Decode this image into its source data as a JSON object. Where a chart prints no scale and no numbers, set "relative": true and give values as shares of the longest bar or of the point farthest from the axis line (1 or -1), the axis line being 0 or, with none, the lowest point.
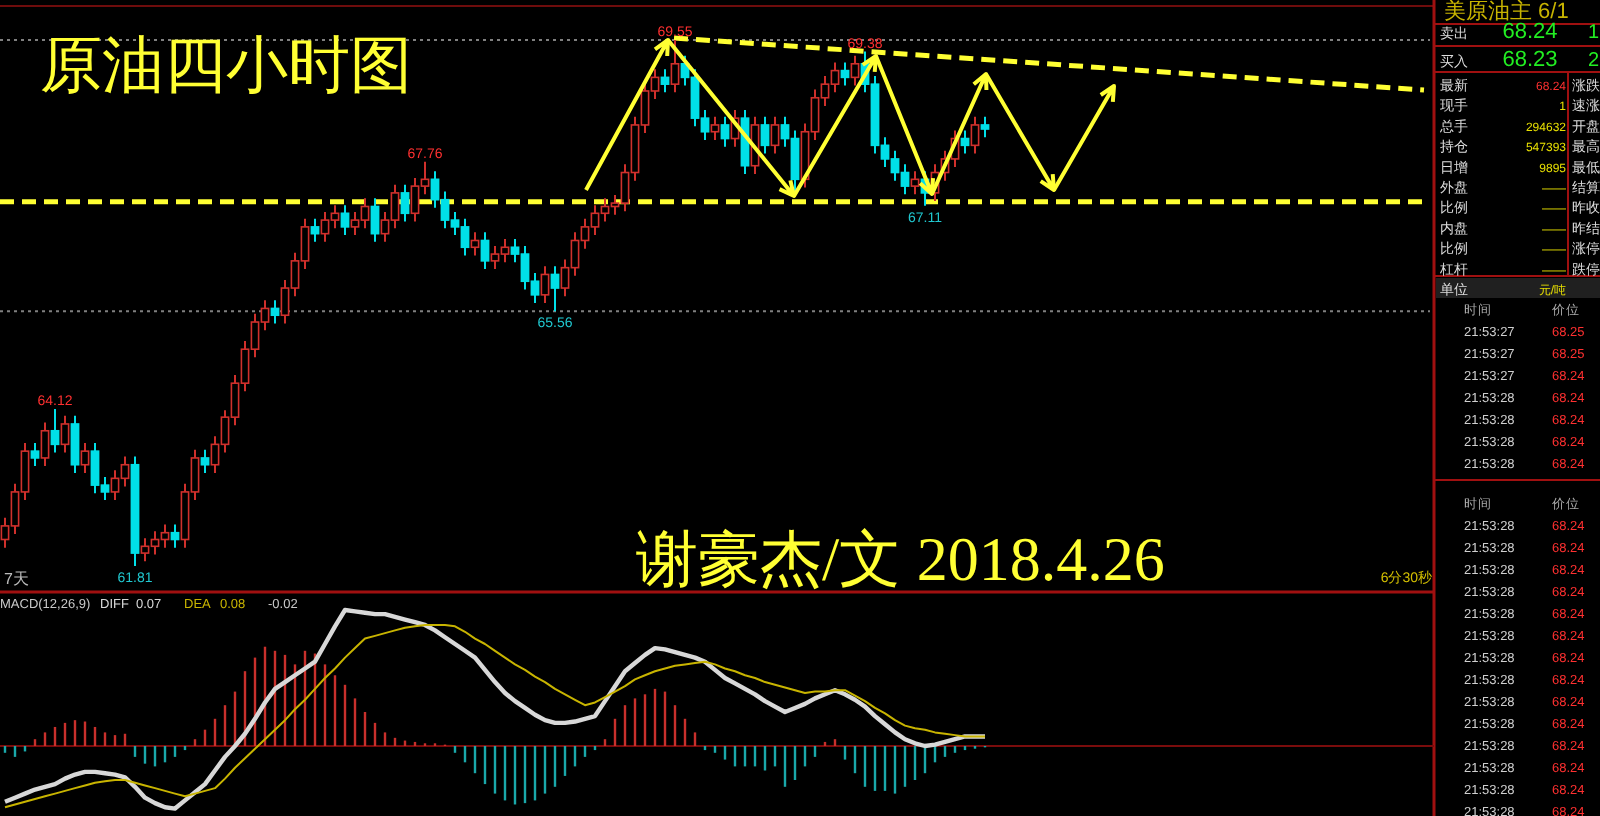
{
  "chart_data": [
    {
      "type": "candlestick",
      "title": "原油四小时图",
      "categories": [
        null,
        null,
        null,
        null,
        null,
        null,
        null,
        null,
        null,
        null,
        null,
        null,
        null,
        null,
        null,
        null,
        null,
        null,
        null,
        null,
        null,
        null,
        null,
        null,
        null,
        null,
        null,
        null,
        null,
        null,
        null,
        null,
        null,
        null,
        null,
        null,
        null,
        null,
        null,
        null,
        null,
        null,
        null,
        null,
        null,
        null,
        null,
        null,
        null,
        null,
        null,
        null,
        null,
        null,
        null,
        null,
        null,
        null,
        null,
        null,
        null,
        null,
        null,
        null,
        null,
        null,
        null,
        null,
        null,
        null,
        null,
        null,
        null,
        null,
        null,
        null,
        null,
        null,
        null,
        null,
        null,
        null,
        null,
        null,
        null,
        null,
        null,
        null,
        null,
        null,
        null,
        null,
        null,
        null,
        null,
        null,
        null,
        null,
        null
      ],
      "ohlc": [
        [
          62.2,
          62.52,
          62.08,
          62.4
        ],
        [
          62.4,
          63.02,
          62.28,
          62.9
        ],
        [
          62.9,
          63.62,
          62.78,
          63.5
        ],
        [
          63.5,
          63.62,
          63.28,
          63.4
        ],
        [
          63.4,
          63.92,
          63.28,
          63.8
        ],
        [
          63.8,
          64.12,
          63.48,
          63.6
        ],
        [
          63.6,
          64.02,
          63.48,
          63.9
        ],
        [
          63.9,
          64.02,
          63.18,
          63.3
        ],
        [
          63.3,
          63.62,
          63.18,
          63.5
        ],
        [
          63.5,
          63.62,
          62.88,
          63.0
        ],
        [
          63.0,
          63.12,
          62.78,
          62.9
        ],
        [
          62.9,
          63.22,
          62.78,
          63.1
        ],
        [
          63.1,
          63.42,
          62.98,
          63.3
        ],
        [
          63.3,
          63.42,
          61.81,
          62.0
        ],
        [
          62.0,
          62.22,
          61.88,
          62.1
        ],
        [
          62.1,
          62.32,
          61.98,
          62.2
        ],
        [
          62.2,
          62.42,
          62.08,
          62.3
        ],
        [
          62.3,
          62.42,
          62.08,
          62.2
        ],
        [
          62.2,
          63.02,
          62.08,
          62.9
        ],
        [
          62.9,
          63.52,
          62.78,
          63.4
        ],
        [
          63.4,
          63.52,
          63.18,
          63.3
        ],
        [
          63.3,
          63.72,
          63.18,
          63.6
        ],
        [
          63.6,
          64.1,
          63.48,
          64.0
        ],
        [
          64.0,
          64.62,
          63.88,
          64.5
        ],
        [
          64.5,
          65.12,
          64.38,
          65.0
        ],
        [
          65.0,
          65.52,
          64.88,
          65.4
        ],
        [
          65.4,
          65.72,
          65.28,
          65.6
        ],
        [
          65.6,
          65.72,
          65.38,
          65.5
        ],
        [
          65.5,
          66.02,
          65.38,
          65.9
        ],
        [
          65.9,
          66.42,
          65.78,
          66.3
        ],
        [
          66.3,
          66.92,
          66.18,
          66.8
        ],
        [
          66.8,
          66.92,
          66.58,
          66.7
        ],
        [
          66.7,
          67.02,
          66.58,
          66.9
        ],
        [
          66.9,
          67.12,
          66.78,
          67.0
        ],
        [
          67.0,
          67.12,
          66.68,
          66.8
        ],
        [
          66.8,
          67.02,
          66.68,
          66.9
        ],
        [
          66.9,
          67.22,
          66.78,
          67.1
        ],
        [
          67.1,
          67.22,
          66.58,
          66.7
        ],
        [
          66.7,
          67.02,
          66.58,
          66.9
        ],
        [
          66.9,
          67.42,
          66.78,
          67.3
        ],
        [
          67.3,
          67.42,
          66.88,
          67.0
        ],
        [
          67.0,
          67.52,
          66.88,
          67.4
        ],
        [
          67.4,
          67.76,
          67.28,
          67.5
        ],
        [
          67.5,
          67.62,
          67.08,
          67.2
        ],
        [
          67.2,
          67.32,
          66.78,
          66.9
        ],
        [
          66.9,
          67.02,
          66.68,
          66.8
        ],
        [
          66.8,
          66.92,
          66.38,
          66.5
        ],
        [
          66.5,
          66.72,
          66.38,
          66.6
        ],
        [
          66.6,
          66.72,
          66.18,
          66.3
        ],
        [
          66.3,
          66.52,
          66.18,
          66.4
        ],
        [
          66.4,
          66.62,
          66.28,
          66.5
        ],
        [
          66.5,
          66.62,
          66.28,
          66.4
        ],
        [
          66.4,
          66.52,
          65.88,
          66.0
        ],
        [
          66.0,
          66.12,
          65.68,
          65.8
        ],
        [
          65.8,
          66.22,
          65.68,
          66.1
        ],
        [
          66.1,
          66.22,
          65.56,
          65.9
        ],
        [
          65.9,
          66.32,
          65.78,
          66.2
        ],
        [
          66.2,
          66.72,
          66.08,
          66.6
        ],
        [
          66.6,
          66.92,
          66.48,
          66.8
        ],
        [
          66.8,
          67.12,
          66.68,
          67.0
        ],
        [
          67.0,
          67.22,
          66.88,
          67.1
        ],
        [
          67.1,
          67.27,
          66.98,
          67.15
        ],
        [
          67.15,
          67.72,
          67.03,
          67.6
        ],
        [
          67.6,
          68.42,
          67.48,
          68.3
        ],
        [
          68.3,
          68.92,
          68.18,
          68.8
        ],
        [
          68.8,
          69.12,
          68.68,
          69.0
        ],
        [
          69.0,
          69.12,
          68.78,
          68.9
        ],
        [
          68.9,
          69.55,
          68.78,
          69.2
        ],
        [
          69.2,
          69.32,
          68.88,
          69.0
        ],
        [
          69.0,
          69.12,
          68.28,
          68.4
        ],
        [
          68.4,
          68.52,
          68.08,
          68.2
        ],
        [
          68.2,
          68.42,
          68.08,
          68.3
        ],
        [
          68.3,
          68.42,
          67.98,
          68.1
        ],
        [
          68.1,
          68.52,
          67.98,
          68.4
        ],
        [
          68.4,
          68.52,
          67.58,
          67.7
        ],
        [
          67.7,
          68.42,
          67.58,
          68.3
        ],
        [
          68.3,
          68.42,
          67.88,
          68.0
        ],
        [
          68.0,
          68.42,
          67.88,
          68.3
        ],
        [
          68.3,
          68.42,
          67.98,
          68.1
        ],
        [
          68.1,
          68.22,
          67.3,
          67.5
        ],
        [
          67.5,
          68.32,
          67.38,
          68.2
        ],
        [
          68.2,
          68.82,
          68.08,
          68.7
        ],
        [
          68.7,
          69.02,
          68.58,
          68.9
        ],
        [
          68.9,
          69.22,
          68.78,
          69.1
        ],
        [
          69.1,
          69.22,
          68.88,
          69.0
        ],
        [
          69.0,
          69.32,
          68.88,
          69.2
        ],
        [
          69.2,
          69.38,
          68.78,
          68.9
        ],
        [
          68.9,
          69.02,
          67.88,
          68.0
        ],
        [
          68.0,
          68.12,
          67.68,
          67.8
        ],
        [
          67.8,
          67.92,
          67.48,
          67.6
        ],
        [
          67.6,
          67.72,
          67.28,
          67.4
        ],
        [
          67.4,
          67.62,
          67.28,
          67.5
        ],
        [
          67.5,
          67.62,
          67.11,
          67.3
        ],
        [
          67.3,
          67.72,
          67.18,
          67.6
        ],
        [
          67.6,
          67.92,
          67.48,
          67.8
        ],
        [
          67.8,
          68.22,
          67.68,
          68.1
        ],
        [
          68.1,
          68.22,
          67.88,
          68.0
        ],
        [
          68.0,
          68.42,
          67.88,
          68.3
        ],
        [
          68.3,
          68.42,
          68.12,
          68.24
        ]
      ],
      "ref_lines": [
        {
          "axis": "y",
          "value": 69.55,
          "color": "#808080",
          "line_style": "dotted"
        },
        {
          "axis": "y",
          "value": 65.56,
          "color": "#808080",
          "line_style": "dotted"
        },
        {
          "axis": "y",
          "value": 67.17,
          "color": "#ffff33",
          "line_style": "dashed"
        }
      ],
      "annotations": [
        "谢豪杰/文 2018.4.26",
        "7天",
        "6分30秒",
        {
          "text": "69.55",
          "y": 69.55
        },
        {
          "text": "69.38",
          "y": 69.38
        },
        {
          "text": "67.76",
          "y": 67.76
        },
        {
          "text": "64.12",
          "y": 64.12
        },
        {
          "text": "65.56",
          "y": 65.56
        },
        {
          "text": "61.81",
          "y": 61.81
        },
        {
          "text": "67.11",
          "y": 67.11
        }
      ]
    },
    {
      "type": "bar",
      "title": "MACD(12,26,9)",
      "relative": true,
      "categories": [
        null,
        null,
        null,
        null,
        null,
        null,
        null,
        null,
        null,
        null,
        null,
        null,
        null,
        null,
        null,
        null,
        null,
        null,
        null,
        null,
        null,
        null,
        null,
        null,
        null,
        null,
        null,
        null,
        null,
        null,
        null,
        null,
        null,
        null,
        null,
        null,
        null,
        null,
        null,
        null,
        null,
        null,
        null,
        null,
        null,
        null,
        null,
        null,
        null,
        null,
        null,
        null,
        null,
        null,
        null,
        null,
        null,
        null,
        null,
        null,
        null,
        null,
        null,
        null,
        null,
        null,
        null,
        null,
        null,
        null,
        null,
        null,
        null,
        null,
        null,
        null,
        null,
        null,
        null,
        null,
        null,
        null,
        null,
        null,
        null,
        null,
        null,
        null,
        null,
        null,
        null,
        null,
        null,
        null,
        null,
        null,
        null,
        null,
        null
      ],
      "series": [
        {
          "type": "bar",
          "colors": [
            "#1aa8aa",
            "#1aa8aa",
            "#1aa8aa",
            "#c8302c",
            "#c8302c",
            "#c8302c",
            "#c8302c",
            "#c8302c",
            "#c8302c",
            "#c8302c",
            "#c8302c",
            "#c8302c",
            "#c8302c",
            "#1aa8aa",
            "#1aa8aa",
            "#1aa8aa",
            "#1aa8aa",
            "#1aa8aa",
            "#1aa8aa",
            "#c8302c",
            "#c8302c",
            "#c8302c",
            "#c8302c",
            "#c8302c",
            "#c8302c",
            "#c8302c",
            "#c8302c",
            "#c8302c",
            "#c8302c",
            "#c8302c",
            "#c8302c",
            "#c8302c",
            "#c8302c",
            "#c8302c",
            "#c8302c",
            "#c8302c",
            "#c8302c",
            "#c8302c",
            "#c8302c",
            "#c8302c",
            "#c8302c",
            "#c8302c",
            "#c8302c",
            "#c8302c",
            "#c8302c",
            "#1aa8aa",
            "#1aa8aa",
            "#1aa8aa",
            "#1aa8aa",
            "#1aa8aa",
            "#1aa8aa",
            "#1aa8aa",
            "#1aa8aa",
            "#1aa8aa",
            "#1aa8aa",
            "#1aa8aa",
            "#1aa8aa",
            "#1aa8aa",
            "#1aa8aa",
            "#1aa8aa",
            "#c8302c",
            "#c8302c",
            "#c8302c",
            "#c8302c",
            "#c8302c",
            "#c8302c",
            "#c8302c",
            "#c8302c",
            "#c8302c",
            "#c8302c",
            "#1aa8aa",
            "#1aa8aa",
            "#1aa8aa",
            "#1aa8aa",
            "#1aa8aa",
            "#1aa8aa",
            "#1aa8aa",
            "#1aa8aa",
            "#1aa8aa",
            "#1aa8aa",
            "#1aa8aa",
            "#1aa8aa",
            "#c8302c",
            "#c8302c",
            "#1aa8aa",
            "#1aa8aa",
            "#1aa8aa",
            "#1aa8aa",
            "#1aa8aa",
            "#1aa8aa",
            "#1aa8aa",
            "#1aa8aa",
            "#1aa8aa",
            "#1aa8aa",
            "#1aa8aa",
            "#1aa8aa",
            "#1aa8aa",
            "#1aa8aa",
            "#1aa8aa"
          ],
          "values": [
            -0.05,
            -0.08,
            -0.04,
            0.05,
            0.1,
            0.14,
            0.17,
            0.19,
            0.18,
            0.14,
            0.1,
            0.08,
            0.09,
            -0.08,
            -0.13,
            -0.15,
            -0.12,
            -0.08,
            -0.03,
            0.05,
            0.12,
            0.2,
            0.3,
            0.4,
            0.55,
            0.65,
            0.73,
            0.7,
            0.67,
            0.6,
            0.7,
            0.68,
            0.6,
            0.52,
            0.45,
            0.35,
            0.25,
            0.17,
            0.1,
            0.06,
            0.04,
            0.03,
            0.02,
            0.02,
            0.01,
            -0.05,
            -0.12,
            -0.2,
            -0.28,
            -0.35,
            -0.4,
            -0.43,
            -0.42,
            -0.4,
            -0.35,
            -0.3,
            -0.22,
            -0.15,
            -0.08,
            -0.03,
            0.05,
            0.2,
            0.3,
            0.35,
            0.38,
            0.42,
            0.4,
            0.3,
            0.2,
            0.1,
            -0.03,
            -0.05,
            -0.1,
            -0.15,
            -0.15,
            -0.15,
            -0.18,
            -0.15,
            -0.3,
            -0.25,
            -0.15,
            -0.08,
            0.03,
            0.05,
            -0.1,
            -0.2,
            -0.3,
            -0.33,
            -0.33,
            -0.35,
            -0.3,
            -0.25,
            -0.2,
            -0.12,
            -0.08,
            -0.05,
            -0.03,
            -0.02,
            -0.01
          ]
        },
        {
          "type": "line",
          "name": "DIFF",
          "color": "#d8d8d8",
          "values": [
            -0.41,
            -0.38,
            -0.35,
            -0.32,
            -0.3,
            -0.28,
            -0.24,
            -0.21,
            -0.19,
            -0.19,
            -0.2,
            -0.21,
            -0.23,
            -0.3,
            -0.38,
            -0.42,
            -0.45,
            -0.46,
            -0.4,
            -0.34,
            -0.28,
            -0.18,
            -0.08,
            0.0,
            0.09,
            0.2,
            0.32,
            0.42,
            0.47,
            0.52,
            0.57,
            0.62,
            0.75,
            0.88,
            1.0,
            0.99,
            0.98,
            0.97,
            0.97,
            0.95,
            0.93,
            0.91,
            0.89,
            0.85,
            0.8,
            0.75,
            0.7,
            0.65,
            0.56,
            0.47,
            0.39,
            0.33,
            0.28,
            0.23,
            0.19,
            0.17,
            0.17,
            0.18,
            0.2,
            0.22,
            0.33,
            0.44,
            0.55,
            0.61,
            0.67,
            0.72,
            0.71,
            0.69,
            0.67,
            0.65,
            0.62,
            0.56,
            0.5,
            0.46,
            0.42,
            0.38,
            0.33,
            0.29,
            0.25,
            0.28,
            0.31,
            0.35,
            0.38,
            0.41,
            0.38,
            0.34,
            0.29,
            0.22,
            0.16,
            0.1,
            0.05,
            0.02,
            0.0,
            0.01,
            0.03,
            0.05,
            0.07,
            0.07,
            0.07
          ]
        },
        {
          "type": "line",
          "name": "DEA",
          "color": "#c8b400",
          "values": [
            -0.45,
            -0.43,
            -0.41,
            -0.39,
            -0.37,
            -0.35,
            -0.33,
            -0.31,
            -0.29,
            -0.27,
            -0.26,
            -0.25,
            -0.25,
            -0.27,
            -0.29,
            -0.31,
            -0.33,
            -0.35,
            -0.37,
            -0.35,
            -0.33,
            -0.31,
            -0.24,
            -0.16,
            -0.09,
            -0.02,
            0.05,
            0.12,
            0.19,
            0.27,
            0.34,
            0.42,
            0.5,
            0.57,
            0.65,
            0.72,
            0.79,
            0.81,
            0.83,
            0.85,
            0.87,
            0.88,
            0.89,
            0.89,
            0.89,
            0.88,
            0.84,
            0.79,
            0.75,
            0.7,
            0.65,
            0.6,
            0.56,
            0.51,
            0.47,
            0.42,
            0.38,
            0.34,
            0.3,
            0.32,
            0.36,
            0.4,
            0.44,
            0.49,
            0.52,
            0.55,
            0.57,
            0.59,
            0.6,
            0.61,
            0.62,
            0.6,
            0.57,
            0.55,
            0.52,
            0.5,
            0.47,
            0.45,
            0.43,
            0.41,
            0.39,
            0.4,
            0.4,
            0.41,
            0.41,
            0.37,
            0.33,
            0.28,
            0.24,
            0.19,
            0.15,
            0.13,
            0.12,
            0.1,
            0.09,
            0.08,
            0.07,
            0.07,
            0.07
          ]
        }
      ],
      "ref_lines": [
        {
          "axis": "y",
          "value": 0,
          "color": "#7a0c0c",
          "line_style": "solid"
        }
      ],
      "annotations": [
        "0.07",
        "0.08",
        "-0.02"
      ]
    },
    {
      "type": "other",
      "title": "美原油主 6/1",
      "annotations": [
        "卖出\t68.24\t1",
        "买入\t68.23\t2",
        "最新\t68.24\t涨跌",
        "现手\t1\t速涨",
        "总手\t294632\t开盘",
        "持仓\t547393\t最高",
        "日增\t9895\t最低",
        "外盘\t——\t结算",
        "比例\t——\t昨收",
        "内盘\t——\t昨结",
        "比例\t——\t涨停",
        "杠杆\t——\t跌停",
        "单位\t元/吨",
        "时间\t价位",
        "21:53:27\t68.25",
        "21:53:27\t68.25",
        "21:53:27\t68.24",
        "21:53:28\t68.24",
        "21:53:28\t68.24",
        "21:53:28\t68.24",
        "21:53:28\t68.24",
        "时间\t价位",
        "21:53:28\t68.24",
        "21:53:28\t68.24",
        "21:53:28\t68.24",
        "21:53:28\t68.24",
        "21:53:28\t68.24",
        "21:53:28\t68.24",
        "21:53:28\t68.24",
        "21:53:28\t68.24",
        "21:53:28\t68.24",
        "21:53:28\t68.24",
        "21:53:28\t68.24",
        "21:53:28\t68.24",
        "21:53:28\t68.24",
        "21:53:28\t68.24"
      ]
    }
  ]
}
